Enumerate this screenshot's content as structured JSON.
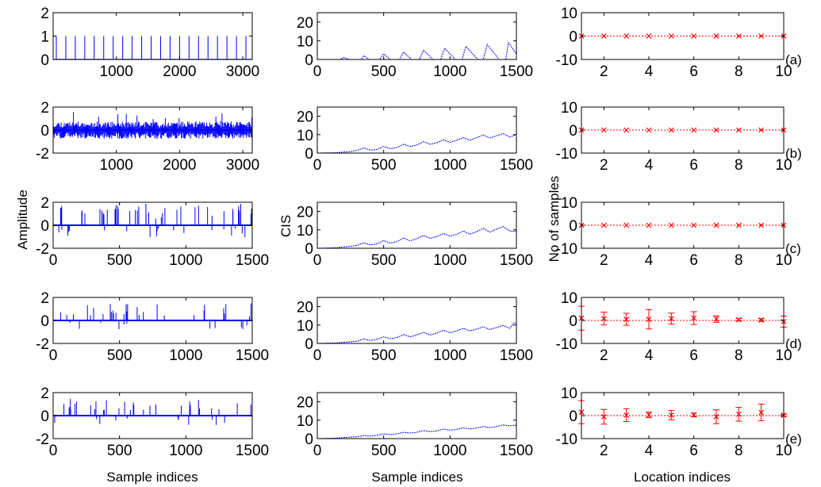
{
  "figure": {
    "ylabels": {
      "amplitude": "Amplitude",
      "cis": "CIS",
      "samples": "No of samples"
    },
    "xlabels": {
      "sample": "Sample indices",
      "location": "Location indices"
    },
    "colors": {
      "signal": "#0000ff",
      "cis": "#0000ff",
      "error": "#ff0000"
    }
  },
  "chart_data": [
    {
      "type": "line",
      "title": "",
      "panel": "(a)",
      "xlabel": "",
      "ylabel": "",
      "xlim": [
        0,
        3150
      ],
      "ylim": [
        0,
        2
      ],
      "xticks": [
        1000,
        2000,
        3000
      ],
      "yticks": [
        0,
        1,
        2
      ],
      "series": [
        {
          "name": "impulse train",
          "kind": "impulses",
          "period": 150,
          "first": 50,
          "value": 1
        }
      ]
    },
    {
      "type": "line",
      "title": "",
      "panel": "(a)",
      "xlabel": "",
      "ylabel": "",
      "xlim": [
        0,
        1500
      ],
      "ylim": [
        0,
        25
      ],
      "xticks": [
        0,
        500,
        1000,
        1500
      ],
      "yticks": [
        0,
        10,
        20
      ],
      "series": [
        {
          "name": "CIS",
          "x": [
            0,
            170,
            200,
            240,
            330,
            350,
            390,
            470,
            500,
            550,
            620,
            650,
            710,
            770,
            800,
            870,
            930,
            960,
            1040,
            1090,
            1120,
            1210,
            1250,
            1280,
            1370,
            1420,
            1440,
            1500
          ],
          "y": [
            0,
            0,
            1,
            0,
            0,
            2,
            0,
            0,
            3,
            0,
            0,
            4,
            0,
            0,
            5,
            0,
            0,
            6,
            0,
            0,
            7,
            0,
            0,
            8,
            0,
            0,
            9,
            3
          ]
        }
      ]
    },
    {
      "type": "scatter",
      "title": "",
      "panel": "(a)",
      "xlabel": "",
      "ylabel": "",
      "xlim": [
        1,
        10
      ],
      "ylim": [
        -10,
        10
      ],
      "xticks": [
        2,
        4,
        6,
        8,
        10
      ],
      "yticks": [
        -10,
        0,
        10
      ],
      "series": [
        {
          "name": "mean",
          "x": [
            1,
            2,
            3,
            4,
            5,
            6,
            7,
            8,
            9,
            10
          ],
          "y": [
            0,
            0,
            0,
            0,
            0,
            0,
            0,
            0,
            0,
            0
          ],
          "err": [
            0,
            0,
            0,
            0,
            0,
            0,
            0,
            0,
            0,
            0
          ]
        }
      ]
    },
    {
      "type": "line",
      "title": "",
      "panel": "(b)",
      "xlabel": "",
      "ylabel": "",
      "xlim": [
        0,
        3150
      ],
      "ylim": [
        -2,
        2
      ],
      "xticks": [
        1000,
        2000,
        3000
      ],
      "yticks": [
        -2,
        0,
        2
      ],
      "series": [
        {
          "name": "signal",
          "kind": "dense-noise",
          "amp": 0.75,
          "peak": 1.6,
          "count": 260,
          "seed": 11
        }
      ]
    },
    {
      "type": "line",
      "title": "",
      "panel": "(b)",
      "xlabel": "",
      "ylabel": "",
      "xlim": [
        0,
        1500
      ],
      "ylim": [
        0,
        25
      ],
      "xticks": [
        0,
        500,
        1000,
        1500
      ],
      "yticks": [
        0,
        10,
        20
      ],
      "series": [
        {
          "name": "CIS",
          "x": [
            0,
            150,
            200,
            250,
            300,
            350,
            400,
            450,
            500,
            550,
            600,
            650,
            700,
            750,
            800,
            850,
            900,
            950,
            1000,
            1050,
            1100,
            1150,
            1200,
            1250,
            1300,
            1350,
            1400,
            1450,
            1500
          ],
          "y": [
            0,
            0.2,
            0.6,
            0.8,
            1.5,
            2.8,
            1.6,
            2.0,
            3.6,
            2.4,
            3.0,
            4.8,
            3.6,
            4.4,
            6.2,
            4.8,
            5.6,
            7.2,
            5.8,
            7.0,
            8.4,
            7.0,
            8.4,
            9.8,
            8.2,
            9.4,
            10.6,
            8.8,
            10.0
          ]
        }
      ]
    },
    {
      "type": "scatter",
      "title": "",
      "panel": "(b)",
      "xlabel": "",
      "ylabel": "",
      "xlim": [
        1,
        10
      ],
      "ylim": [
        -10,
        10
      ],
      "xticks": [
        2,
        4,
        6,
        8,
        10
      ],
      "yticks": [
        -10,
        0,
        10
      ],
      "series": [
        {
          "name": "mean",
          "x": [
            1,
            2,
            3,
            4,
            5,
            6,
            7,
            8,
            9,
            10
          ],
          "y": [
            0,
            0,
            0,
            0,
            0,
            0,
            0,
            0,
            0,
            0
          ],
          "err": [
            0,
            0,
            0,
            0,
            0,
            0,
            0,
            0,
            0,
            0
          ]
        }
      ]
    },
    {
      "type": "line",
      "title": "",
      "panel": "(c)",
      "xlabel": "",
      "ylabel": "Amplitude",
      "xlim": [
        0,
        1500
      ],
      "ylim": [
        -2,
        2
      ],
      "xticks": [
        0,
        500,
        1000,
        1500
      ],
      "yticks": [
        -2,
        0,
        2
      ],
      "series": [
        {
          "name": "signal",
          "kind": "spikes",
          "density": 0.09,
          "peak": 1.9,
          "low": -1.1,
          "seed": 23
        }
      ]
    },
    {
      "type": "line",
      "title": "",
      "panel": "(c)",
      "xlabel": "",
      "ylabel": "CIS",
      "xlim": [
        0,
        1500
      ],
      "ylim": [
        0,
        25
      ],
      "xticks": [
        0,
        500,
        1000,
        1500
      ],
      "yticks": [
        0,
        10,
        20
      ],
      "series": [
        {
          "name": "CIS",
          "x": [
            0,
            150,
            200,
            250,
            300,
            350,
            400,
            450,
            500,
            550,
            600,
            650,
            700,
            750,
            800,
            850,
            900,
            950,
            1000,
            1050,
            1100,
            1150,
            1200,
            1250,
            1300,
            1350,
            1400,
            1450,
            1500
          ],
          "y": [
            0,
            0.3,
            0.8,
            1.0,
            1.6,
            3.0,
            1.8,
            2.4,
            4.2,
            2.8,
            3.6,
            5.6,
            4.0,
            5.2,
            7.0,
            5.4,
            6.4,
            8.0,
            6.6,
            7.6,
            9.4,
            7.6,
            9.0,
            10.8,
            8.8,
            10.4,
            11.8,
            9.4,
            9.2
          ]
        }
      ]
    },
    {
      "type": "scatter",
      "title": "",
      "panel": "(c)",
      "xlabel": "",
      "ylabel": "No of samples",
      "xlim": [
        1,
        10
      ],
      "ylim": [
        -10,
        10
      ],
      "xticks": [
        2,
        4,
        6,
        8,
        10
      ],
      "yticks": [
        -10,
        0,
        10
      ],
      "series": [
        {
          "name": "mean",
          "x": [
            1,
            2,
            3,
            4,
            5,
            6,
            7,
            8,
            9,
            10
          ],
          "y": [
            0,
            0,
            0,
            0,
            0,
            0,
            0,
            0,
            0,
            0
          ],
          "err": [
            0,
            0,
            0,
            0,
            0,
            0,
            0,
            0,
            0,
            0
          ]
        }
      ]
    },
    {
      "type": "line",
      "title": "",
      "panel": "(d)",
      "xlabel": "",
      "ylabel": "",
      "xlim": [
        0,
        1500
      ],
      "ylim": [
        -2,
        2
      ],
      "xticks": [
        0,
        500,
        1000,
        1500
      ],
      "yticks": [
        -2,
        0,
        2
      ],
      "series": [
        {
          "name": "signal",
          "kind": "spikes",
          "density": 0.055,
          "peak": 1.5,
          "low": -0.8,
          "seed": 37
        }
      ]
    },
    {
      "type": "line",
      "title": "",
      "panel": "(d)",
      "xlabel": "",
      "ylabel": "",
      "xlim": [
        0,
        1500
      ],
      "ylim": [
        0,
        25
      ],
      "xticks": [
        0,
        500,
        1000,
        1500
      ],
      "yticks": [
        0,
        10,
        20
      ],
      "series": [
        {
          "name": "CIS",
          "x": [
            0,
            150,
            200,
            250,
            300,
            350,
            400,
            450,
            500,
            550,
            600,
            650,
            700,
            750,
            800,
            850,
            900,
            950,
            1000,
            1050,
            1100,
            1150,
            1200,
            1250,
            1300,
            1350,
            1400,
            1450,
            1480,
            1500
          ],
          "y": [
            0,
            0.3,
            0.6,
            0.9,
            1.2,
            2.4,
            1.6,
            2.2,
            3.6,
            2.6,
            3.2,
            4.8,
            3.6,
            4.6,
            6.0,
            4.6,
            5.6,
            7.2,
            5.8,
            6.8,
            8.2,
            6.8,
            7.8,
            9.0,
            7.6,
            8.6,
            9.8,
            8.2,
            11.2,
            11.0
          ]
        }
      ]
    },
    {
      "type": "scatter",
      "title": "",
      "panel": "(d)",
      "xlabel": "",
      "ylabel": "",
      "xlim": [
        1,
        10
      ],
      "ylim": [
        -10,
        10
      ],
      "xticks": [
        2,
        4,
        6,
        8,
        10
      ],
      "yticks": [
        -10,
        0,
        10
      ],
      "series": [
        {
          "name": "mean",
          "x": [
            1,
            2,
            3,
            4,
            5,
            6,
            7,
            8,
            9,
            10
          ],
          "y": [
            1.0,
            0.8,
            0.5,
            0.5,
            0.8,
            1.0,
            0.6,
            0.3,
            0.2,
            -0.5
          ],
          "err": [
            5.2,
            2.8,
            2.6,
            4.2,
            2.4,
            2.8,
            1.4,
            0.5,
            0.6,
            2.4
          ]
        }
      ]
    },
    {
      "type": "line",
      "title": "",
      "panel": "(e)",
      "xlabel": "Sample indices",
      "ylabel": "",
      "xlim": [
        0,
        1500
      ],
      "ylim": [
        -2,
        2
      ],
      "xticks": [
        0,
        500,
        1000,
        1500
      ],
      "yticks": [
        -2,
        0,
        2
      ],
      "series": [
        {
          "name": "signal",
          "kind": "spikes",
          "density": 0.06,
          "peak": 1.5,
          "low": -0.9,
          "seed": 53
        }
      ]
    },
    {
      "type": "line",
      "title": "",
      "panel": "(e)",
      "xlabel": "Sample indices",
      "ylabel": "",
      "xlim": [
        0,
        1500
      ],
      "ylim": [
        0,
        25
      ],
      "xticks": [
        0,
        500,
        1000,
        1500
      ],
      "yticks": [
        0,
        10,
        20
      ],
      "series": [
        {
          "name": "CIS",
          "x": [
            0,
            150,
            200,
            250,
            300,
            350,
            400,
            450,
            500,
            550,
            600,
            650,
            700,
            750,
            800,
            850,
            900,
            950,
            1000,
            1050,
            1100,
            1150,
            1200,
            1250,
            1300,
            1350,
            1400,
            1450,
            1500
          ],
          "y": [
            0,
            0.3,
            0.6,
            0.8,
            1.0,
            1.6,
            1.4,
            1.8,
            2.6,
            2.2,
            2.6,
            3.4,
            3.0,
            3.4,
            4.4,
            3.8,
            4.2,
            5.2,
            4.6,
            5.0,
            5.8,
            5.2,
            5.8,
            6.6,
            6.0,
            6.6,
            7.4,
            7.0,
            7.2
          ]
        }
      ]
    },
    {
      "type": "scatter",
      "title": "",
      "panel": "(e)",
      "xlabel": "Location indices",
      "ylabel": "",
      "xlim": [
        1,
        10
      ],
      "ylim": [
        -10,
        10
      ],
      "xticks": [
        2,
        4,
        6,
        8,
        10
      ],
      "yticks": [
        -10,
        0,
        10
      ],
      "series": [
        {
          "name": "mean",
          "x": [
            1,
            2,
            3,
            4,
            5,
            6,
            7,
            8,
            9,
            10
          ],
          "y": [
            1.5,
            -0.5,
            0.2,
            0.3,
            0.2,
            0.3,
            -0.5,
            0.6,
            1.4,
            0.2
          ],
          "err": [
            5.0,
            3.2,
            2.8,
            1.2,
            2.0,
            0.8,
            3.0,
            3.0,
            3.6,
            0.4
          ]
        }
      ]
    }
  ]
}
